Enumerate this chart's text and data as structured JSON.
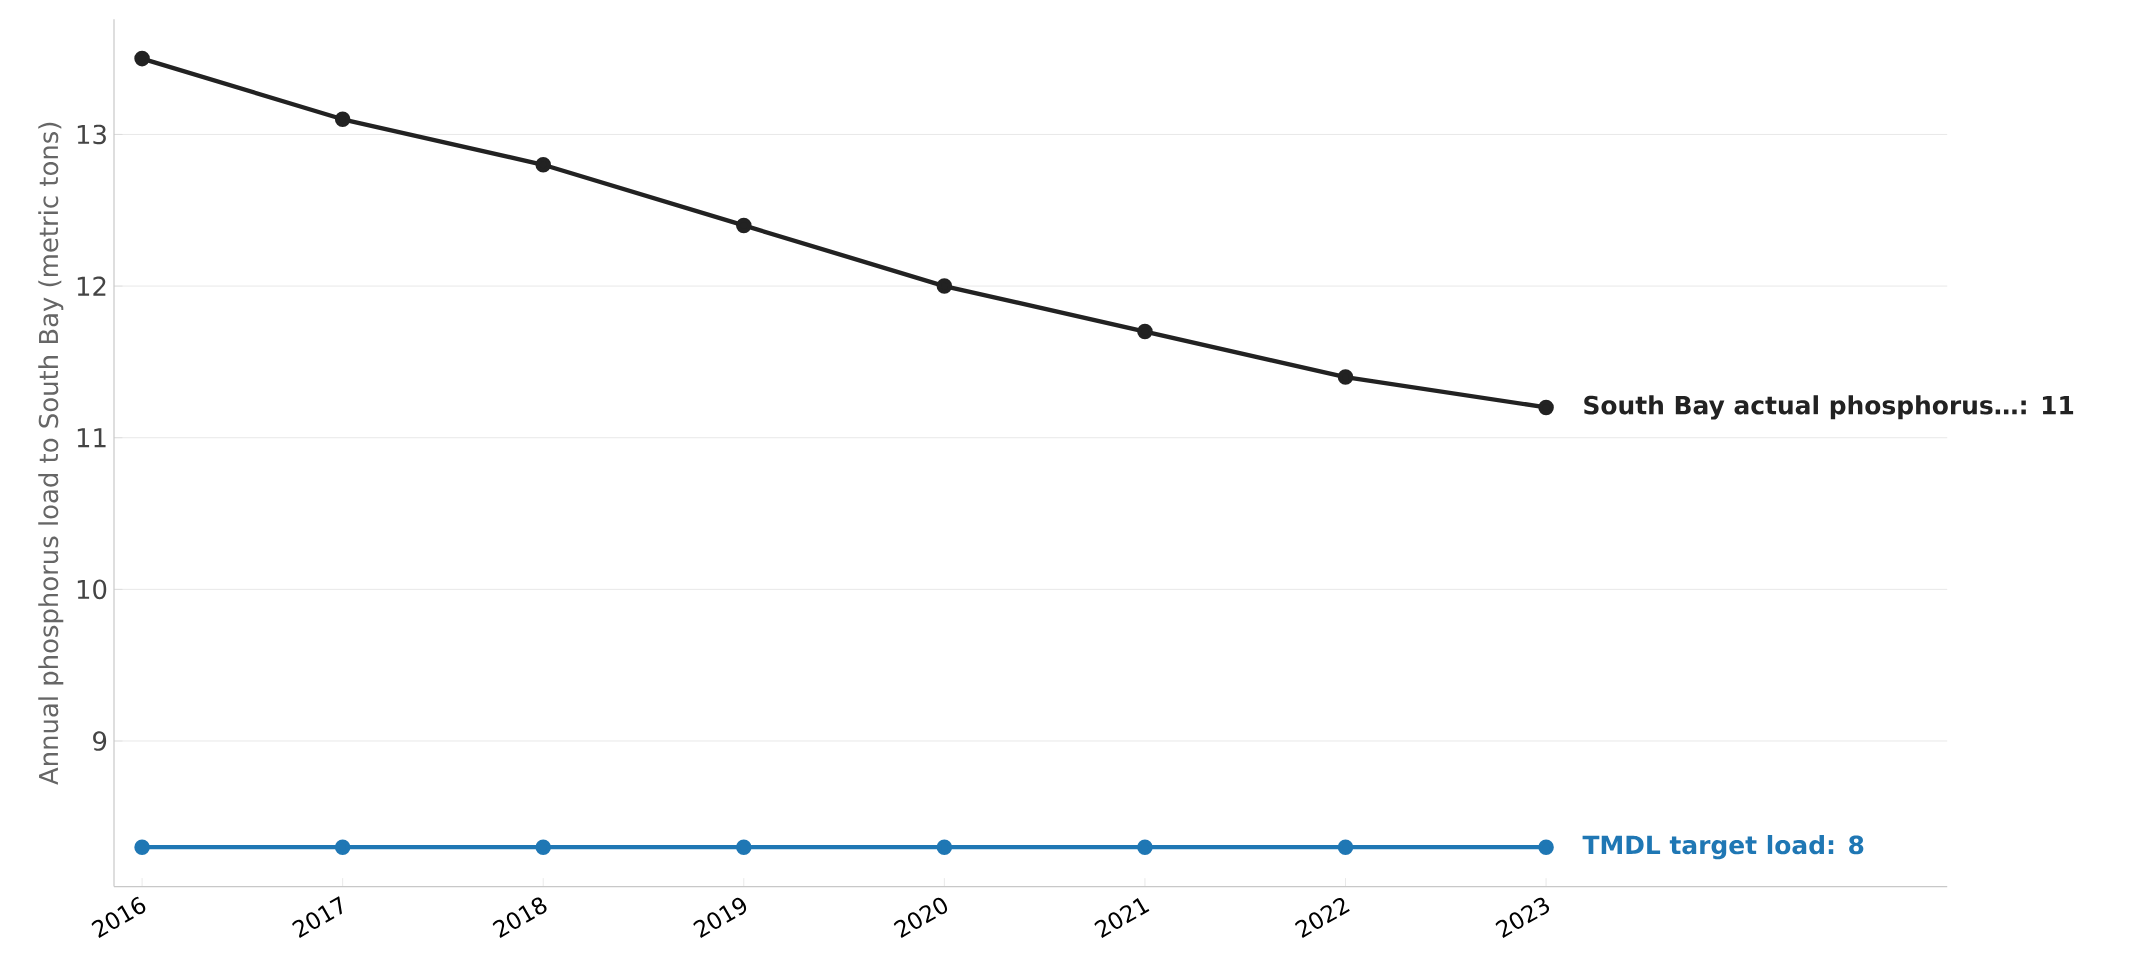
{
  "chart_data": {
    "type": "line",
    "ylabel": "Annual phosphorus load to South Bay (metric tons)",
    "x": [
      2016,
      2017,
      2018,
      2019,
      2020,
      2021,
      2022,
      2023
    ],
    "series": [
      {
        "color": "#222222",
        "values": [
          13.5,
          13.1,
          12.8,
          12.4,
          12.0,
          11.7,
          11.4,
          11.2
        ]
      },
      {
        "color": "#1f77b4",
        "values": [
          8.3,
          8.3,
          8.3,
          8.3,
          8.3,
          8.3,
          8.3,
          8.3
        ]
      }
    ],
    "annotations": [
      {
        "text": "**South Bay actual phosphorus…: 11**",
        "x": 2023,
        "y": 11.2
      },
      {
        "text": "**TMDL target load: 8**",
        "x": 2023,
        "y": 8.3
      }
    ],
    "xlim": [
      2015.86,
      2025
    ],
    "ylim": [
      8.04,
      13.76
    ],
    "xticks": [
      2016,
      2017,
      2018,
      2019,
      2020,
      2021,
      2022,
      2023
    ],
    "yticks": [
      9,
      10,
      11,
      12,
      13
    ],
    "grid": "y",
    "marker": "circle",
    "line_style": "solid"
  }
}
